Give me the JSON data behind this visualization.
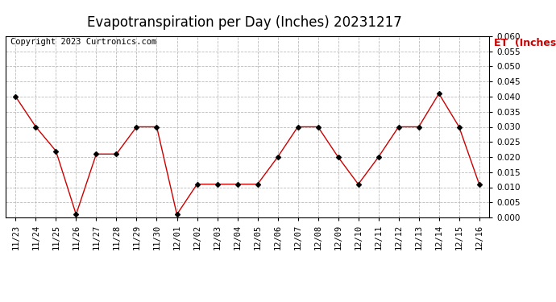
{
  "title": "Evapotranspiration per Day (Inches) 20231217",
  "copyright": "Copyright 2023 Curtronics.com",
  "legend_label": "ET  (Inches)",
  "dates": [
    "11/23",
    "11/24",
    "11/25",
    "11/26",
    "11/27",
    "11/28",
    "11/29",
    "11/30",
    "12/01",
    "12/02",
    "12/03",
    "12/04",
    "12/05",
    "12/06",
    "12/07",
    "12/08",
    "12/09",
    "12/10",
    "12/11",
    "12/12",
    "12/13",
    "12/14",
    "12/15",
    "12/16"
  ],
  "et_values": [
    0.04,
    0.03,
    0.022,
    0.001,
    0.021,
    0.021,
    0.03,
    0.03,
    0.001,
    0.011,
    0.011,
    0.011,
    0.011,
    0.02,
    0.03,
    0.03,
    0.02,
    0.011,
    0.02,
    0.03,
    0.03,
    0.041,
    0.03,
    0.011
  ],
  "line_color": "#cc0000",
  "marker_color": "#000000",
  "background_color": "#ffffff",
  "grid_color": "#bbbbbb",
  "ylim": [
    0.0,
    0.06
  ],
  "yticks": [
    0.0,
    0.005,
    0.01,
    0.015,
    0.02,
    0.025,
    0.03,
    0.035,
    0.04,
    0.045,
    0.05,
    0.055,
    0.06
  ],
  "title_fontsize": 12,
  "copyright_fontsize": 7.5,
  "legend_fontsize": 9,
  "tick_fontsize": 7.5
}
